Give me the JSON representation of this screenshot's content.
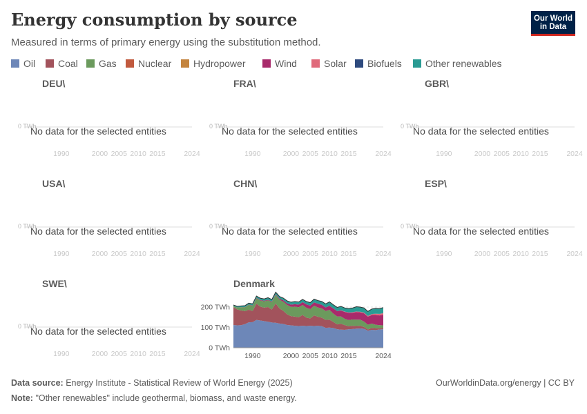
{
  "header": {
    "title": "Energy consumption by source",
    "subtitle": "Measured in terms of primary energy using the substitution method."
  },
  "logo": {
    "line1": "Our World",
    "line2": "in Data"
  },
  "legend": [
    {
      "label": "Oil",
      "color": "#6d87b8"
    },
    {
      "label": "Coal",
      "color": "#a2535c"
    },
    {
      "label": "Gas",
      "color": "#6b9a5d"
    },
    {
      "label": "Nuclear",
      "color": "#c15a3e"
    },
    {
      "label": "Hydropower",
      "color": "#c4843e"
    },
    {
      "label": "Wind",
      "color": "#a82a6b"
    },
    {
      "label": "Solar",
      "color": "#e06a7b"
    },
    {
      "label": "Biofuels",
      "color": "#2e4a7e"
    },
    {
      "label": "Other renewables",
      "color": "#2a9b93"
    }
  ],
  "chart_data": {
    "type": "area",
    "stacked": true,
    "empty_message": "No data for the selected entities",
    "y_unit_labels": [
      "0 TWh",
      "100 TWh",
      "200 TWh"
    ],
    "empty_y_label": "0 TWh",
    "x_ticks": [
      1990,
      2000,
      2005,
      2010,
      2015,
      2024
    ],
    "x_range": [
      1985,
      2024
    ],
    "y_range": [
      0,
      300
    ],
    "facets": [
      {
        "entity": "DEU\\",
        "has_data": false
      },
      {
        "entity": "FRA\\",
        "has_data": false
      },
      {
        "entity": "GBR\\",
        "has_data": false
      },
      {
        "entity": "USA\\",
        "has_data": false
      },
      {
        "entity": "CHN\\",
        "has_data": false
      },
      {
        "entity": "ESP\\",
        "has_data": false
      },
      {
        "entity": "SWE\\",
        "has_data": false
      },
      {
        "entity": "Denmark",
        "has_data": true,
        "years": [
          1985,
          1986,
          1987,
          1988,
          1989,
          1990,
          1991,
          1992,
          1993,
          1994,
          1995,
          1996,
          1997,
          1998,
          1999,
          2000,
          2001,
          2002,
          2003,
          2004,
          2005,
          2006,
          2007,
          2008,
          2009,
          2010,
          2011,
          2012,
          2013,
          2014,
          2015,
          2016,
          2017,
          2018,
          2019,
          2020,
          2021,
          2022,
          2023,
          2024
        ],
        "series": [
          {
            "name": "Oil",
            "color": "#6d87b8",
            "values": [
              112,
              110,
              111,
              116,
              125,
              126,
              137,
              134,
              131,
              128,
              124,
              123,
              119,
              117,
              112,
              110,
              108,
              107,
              108,
              107,
              108,
              107,
              108,
              106,
              98,
              99,
              97,
              91,
              89,
              88,
              91,
              92,
              94,
              95,
              93,
              84,
              88,
              87,
              90,
              91
            ]
          },
          {
            "name": "Coal",
            "color": "#a2535c",
            "values": [
              88,
              78,
              72,
              64,
              62,
              55,
              80,
              68,
              66,
              72,
              64,
              95,
              74,
              64,
              52,
              45,
              45,
              43,
              53,
              41,
              36,
              52,
              44,
              42,
              39,
              39,
              30,
              24,
              29,
              23,
              15,
              16,
              13,
              13,
              9,
              6,
              10,
              9,
              6,
              5
            ]
          },
          {
            "name": "Gas",
            "color": "#6b9a5d",
            "values": [
              5,
              10,
              16,
              19,
              24,
              25,
              26,
              30,
              31,
              33,
              36,
              42,
              43,
              45,
              46,
              46,
              49,
              49,
              49,
              48,
              46,
              48,
              46,
              45,
              44,
              48,
              41,
              39,
              36,
              31,
              30,
              31,
              31,
              30,
              27,
              23,
              21,
              17,
              15,
              14
            ]
          },
          {
            "name": "Nuclear",
            "color": "#c15a3e",
            "values": [
              0,
              0,
              0,
              0,
              0,
              0,
              0,
              0,
              0,
              0,
              0,
              0,
              0,
              0,
              0,
              0,
              0,
              0,
              0,
              0,
              0,
              0,
              0,
              0,
              0,
              0,
              0,
              0,
              0,
              0,
              0,
              0,
              0,
              0,
              0,
              0,
              0,
              0,
              0,
              0
            ]
          },
          {
            "name": "Hydropower",
            "color": "#c4843e",
            "values": [
              0,
              0,
              0,
              0,
              0,
              0,
              0,
              0,
              0,
              0,
              0,
              0,
              0,
              0,
              0,
              0,
              0,
              0,
              0,
              0,
              0,
              0,
              0,
              0,
              0,
              0,
              0,
              0,
              0,
              0,
              0,
              0,
              0,
              0,
              0,
              0,
              0,
              0,
              0,
              0
            ]
          },
          {
            "name": "Wind",
            "color": "#a82a6b",
            "values": [
              0.2,
              0.4,
              0.6,
              1,
              1.4,
              1.7,
              2.2,
              2.6,
              3,
              3.1,
              3.1,
              3.2,
              5,
              7,
              8,
              11,
              12,
              13,
              14,
              17,
              17,
              16,
              18,
              18,
              17,
              20,
              25,
              26,
              29,
              34,
              36,
              33,
              38,
              36,
              40,
              40,
              42,
              48,
              48,
              52
            ]
          },
          {
            "name": "Solar",
            "color": "#e06a7b",
            "values": [
              0,
              0,
              0,
              0,
              0,
              0,
              0,
              0,
              0,
              0,
              0,
              0,
              0,
              0,
              0,
              0,
              0,
              0,
              0,
              0,
              0,
              0,
              0,
              0,
              0,
              0,
              0,
              0,
              1,
              1,
              1.5,
              2,
              2,
              2.5,
              3,
              3,
              4,
              6,
              7,
              8
            ]
          },
          {
            "name": "Biofuels",
            "color": "#2e4a7e",
            "values": [
              0,
              0,
              0,
              0,
              0,
              0,
              0,
              0,
              0,
              0,
              0,
              0,
              0,
              0,
              0,
              0,
              0,
              0,
              0,
              0,
              0,
              0,
              0,
              0.5,
              0.5,
              0.5,
              0.5,
              0.5,
              0.5,
              0.5,
              0.5,
              0.5,
              0.5,
              0.5,
              0.5,
              0.5,
              0.5,
              0.5,
              0.5,
              0.5
            ]
          },
          {
            "name": "Other renewables",
            "color": "#2a9b93",
            "values": [
              5,
              5,
              6,
              7,
              7,
              8,
              9,
              9,
              9,
              10,
              10,
              10,
              11,
              11,
              12,
              12,
              13,
              13,
              14,
              14,
              15,
              16,
              16,
              16,
              17,
              19,
              18,
              18,
              19,
              18,
              19,
              21,
              23,
              23,
              23,
              22,
              25,
              26,
              26,
              27
            ]
          }
        ]
      }
    ]
  },
  "footer": {
    "source_label": "Data source:",
    "source_text": "Energy Institute - Statistical Review of World Energy (2025)",
    "note_label": "Note:",
    "note_text": "\"Other renewables\" include geothermal, biomass, and waste energy.",
    "credit": "OurWorldinData.org/energy | CC BY"
  }
}
